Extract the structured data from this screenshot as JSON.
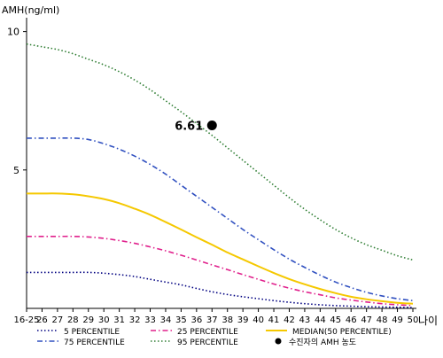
{
  "chart_data": {
    "type": "line",
    "ylabel": "AMH(ng/ml)",
    "xlabel": "나이",
    "ylim": [
      0,
      10.5
    ],
    "yticks": [
      10,
      5
    ],
    "x": [
      "16-25",
      "26",
      "27",
      "28",
      "29",
      "30",
      "31",
      "32",
      "33",
      "34",
      "35",
      "36",
      "37",
      "38",
      "39",
      "40",
      "41",
      "42",
      "43",
      "44",
      "45",
      "46",
      "47",
      "48",
      "49",
      "50"
    ],
    "series": [
      {
        "name": "5 PERCENTILE",
        "color": "#000080",
        "dash": "dot",
        "values": [
          1.3,
          1.3,
          1.3,
          1.3,
          1.3,
          1.27,
          1.22,
          1.15,
          1.05,
          0.95,
          0.85,
          0.72,
          0.6,
          0.5,
          0.42,
          0.35,
          0.28,
          0.22,
          0.17,
          0.13,
          0.1,
          0.08,
          0.06,
          0.05,
          0.04,
          0.03
        ]
      },
      {
        "name": "25 PERCENTILE",
        "color": "#e0208c",
        "dash": "dashdot",
        "values": [
          2.6,
          2.6,
          2.6,
          2.6,
          2.58,
          2.53,
          2.45,
          2.35,
          2.22,
          2.08,
          1.92,
          1.75,
          1.57,
          1.4,
          1.22,
          1.05,
          0.88,
          0.73,
          0.6,
          0.49,
          0.38,
          0.3,
          0.23,
          0.17,
          0.13,
          0.1
        ]
      },
      {
        "name": "MEDIAN(50 PERCENTILE)",
        "color": "#f5c800",
        "dash": "solid",
        "values": [
          4.15,
          4.15,
          4.15,
          4.12,
          4.05,
          3.95,
          3.8,
          3.6,
          3.38,
          3.12,
          2.85,
          2.57,
          2.3,
          2.02,
          1.77,
          1.52,
          1.28,
          1.06,
          0.87,
          0.7,
          0.55,
          0.42,
          0.33,
          0.26,
          0.2,
          0.17
        ]
      },
      {
        "name": "75 PERCENTILE",
        "color": "#3050c0",
        "dash": "dashdot",
        "values": [
          6.15,
          6.15,
          6.15,
          6.15,
          6.1,
          5.95,
          5.75,
          5.5,
          5.2,
          4.85,
          4.45,
          4.05,
          3.65,
          3.25,
          2.85,
          2.48,
          2.12,
          1.78,
          1.48,
          1.2,
          0.95,
          0.75,
          0.58,
          0.45,
          0.35,
          0.28
        ]
      },
      {
        "name": "95 PERCENTILE",
        "color": "#2e7d32",
        "dash": "dot",
        "values": [
          9.55,
          9.45,
          9.35,
          9.2,
          9.0,
          8.8,
          8.55,
          8.25,
          7.9,
          7.5,
          7.1,
          6.68,
          6.25,
          5.8,
          5.35,
          4.9,
          4.45,
          4.0,
          3.58,
          3.2,
          2.85,
          2.55,
          2.3,
          2.1,
          1.9,
          1.75
        ]
      }
    ],
    "patient": {
      "label": "수진자의 AMH 농도",
      "value_label": "6.61",
      "x": "37",
      "y": 6.61
    },
    "legend": {
      "placement": "bottom",
      "order": [
        "5 PERCENTILE",
        "25 PERCENTILE",
        "MEDIAN(50 PERCENTILE)",
        "75 PERCENTILE",
        "95 PERCENTILE",
        "patient"
      ]
    },
    "grid": false
  }
}
